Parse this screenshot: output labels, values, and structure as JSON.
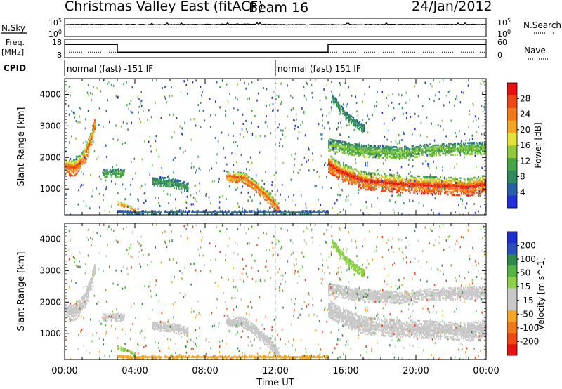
{
  "header": {
    "station": "Christmas Valley East (fitACF)",
    "beam": "Beam 16",
    "date": "24/Jan/2012"
  },
  "top_panels": {
    "nsky_label": "N.Sky",
    "nsky_ticks": [
      "10^5",
      "10^0"
    ],
    "nsearch_label": "N.Search",
    "nsearch_ticks": [
      "10^5",
      "10^0"
    ],
    "freq_label": "Freq.",
    "freq_unit": "[MHz]",
    "freq_ticks": [
      "18",
      "8"
    ],
    "nave_label": "Nave",
    "nave_ticks": [
      "60",
      "0"
    ],
    "cpid_label": "CPID",
    "cpid_segments": [
      {
        "label": "normal (fast) -151 IF",
        "start_hour": 0,
        "end_hour": 12
      },
      {
        "label": "normal (fast) 151 IF",
        "start_hour": 12,
        "end_hour": 24
      }
    ]
  },
  "colors": {
    "power_scale": [
      "#2130d8",
      "#2860a8",
      "#2f8a62",
      "#45a548",
      "#8fc83a",
      "#e2e23a",
      "#f5a623",
      "#f07a1a",
      "#ee4816",
      "#e81010"
    ],
    "velocity_scale": [
      "#1d2fcf",
      "#2c4fbf",
      "#2f8a4a",
      "#55b340",
      "#8cd04a",
      "#c8c8c8",
      "#c8c8c8",
      "#f5a623",
      "#f07a1a",
      "#ee4816",
      "#e81010"
    ]
  },
  "chart_data": [
    {
      "type": "line",
      "title": "N.Sky / N.Search",
      "x_range_hours": [
        0,
        24
      ],
      "y_scale": "log",
      "ylim": [
        1,
        100000
      ],
      "series": [
        {
          "name": "N.Sky",
          "style": "solid",
          "x": [
            0,
            2,
            4,
            6,
            8,
            10,
            12,
            14,
            16,
            18,
            20,
            22,
            24
          ],
          "values": [
            3000,
            3500,
            3200,
            3000,
            3400,
            4500,
            3000,
            2800,
            3000,
            3200,
            3500,
            3300,
            3400
          ]
        },
        {
          "name": "N.Search",
          "style": "dotted",
          "x": [
            0,
            4,
            8,
            12,
            16,
            20,
            24
          ],
          "values": [
            400,
            400,
            400,
            400,
            400,
            400,
            400
          ]
        }
      ]
    },
    {
      "type": "line",
      "title": "Freq. / Nave",
      "x_range_hours": [
        0,
        24
      ],
      "ylim_freq_mhz": [
        8,
        18
      ],
      "ylim_nave": [
        0,
        60
      ],
      "series": [
        {
          "name": "Freq.",
          "style": "solid",
          "x": [
            0,
            3.0,
            3.0,
            15.0,
            15.0,
            24
          ],
          "values": [
            15.2,
            15.2,
            11.0,
            11.0,
            15.2,
            15.2
          ]
        },
        {
          "name": "Nave",
          "style": "dotted",
          "x": [
            0,
            24
          ],
          "values": [
            18,
            18
          ]
        }
      ]
    },
    {
      "type": "heatmap",
      "variable": "Power",
      "ylabel": "Slant Range [km]",
      "colorbar_label": "Power [dB]",
      "colorbar_ticks": [
        "4",
        "8",
        "12",
        "16",
        "20",
        "24",
        "28"
      ],
      "zlim": [
        0,
        30
      ],
      "xlim_hours": [
        0,
        24
      ],
      "ylim_km": [
        180,
        4500
      ],
      "y_ticks": [
        "1000",
        "2000",
        "3000",
        "4000"
      ],
      "regions": [
        {
          "name": "morning band",
          "t": [
            0.0,
            0.5,
            1.0,
            1.5,
            1.7
          ],
          "r_center": [
            1700,
            1650,
            1900,
            2600,
            3200
          ],
          "width_km": 500,
          "peak_db": 26
        },
        {
          "name": "mid blob A",
          "t": [
            2.2,
            2.8,
            3.4
          ],
          "r_center": [
            1500,
            1500,
            1500
          ],
          "width_km": 250,
          "peak_db": 12
        },
        {
          "name": "mid blob B",
          "t": [
            5.0,
            6.0,
            7.0
          ],
          "r_center": [
            1250,
            1200,
            1050
          ],
          "width_km": 300,
          "peak_db": 10
        },
        {
          "name": "near echo 04",
          "t": [
            3.0,
            3.5,
            4.0
          ],
          "r_center": [
            550,
            450,
            320
          ],
          "width_km": 120,
          "peak_db": 24
        },
        {
          "name": "pre-noon band",
          "t": [
            9.2,
            10.2,
            11.0,
            11.6,
            12.2
          ],
          "r_center": [
            1400,
            1350,
            1000,
            700,
            350
          ],
          "width_km": 350,
          "peak_db": 25
        },
        {
          "name": "afternoon band",
          "t": [
            15.0,
            15.6,
            17.0,
            19.0,
            21.0,
            23.0,
            24.0
          ],
          "r_center": [
            1800,
            1550,
            1250,
            1150,
            1100,
            1050,
            1150
          ],
          "width_km": 550,
          "peak_db": 28
        },
        {
          "name": "upper layer",
          "t": [
            15.0,
            17.0,
            19.0,
            21.0,
            24.0
          ],
          "r_center": [
            2400,
            2200,
            2150,
            2250,
            2300
          ],
          "width_km": 400,
          "peak_db": 14
        },
        {
          "name": "high arc",
          "t": [
            15.2,
            16.0,
            17.0
          ],
          "r_center": [
            3900,
            3300,
            2900
          ],
          "width_km": 250,
          "peak_db": 10
        },
        {
          "name": "ground scatter floor",
          "t": [
            3.0,
            8.0,
            13.0,
            15.0
          ],
          "r_center": [
            240,
            240,
            240,
            240
          ],
          "width_km": 90,
          "peak_db": 6
        }
      ]
    },
    {
      "type": "heatmap",
      "variable": "Velocity",
      "ylabel": "Slant Range [km]",
      "colorbar_label": "Velocity [m s^-1]",
      "colorbar_ticks": [
        "200",
        "100",
        "50",
        "15",
        "-15",
        "-50",
        "-100",
        "-200"
      ],
      "zlim": [
        -250,
        250
      ],
      "xlim_hours": [
        0,
        24
      ],
      "ylim_km": [
        180,
        4500
      ],
      "y_ticks": [
        "1000",
        "2000",
        "3000",
        "4000"
      ],
      "x_ticks": [
        "00:00",
        "04:00",
        "08:00",
        "12:00",
        "16:00",
        "20:00",
        "00:00"
      ],
      "xlabel": "Time UT",
      "regions": [
        {
          "name": "morning band",
          "t": [
            0.0,
            0.5,
            1.0,
            1.5,
            1.7
          ],
          "r_center": [
            1700,
            1650,
            1900,
            2600,
            3200
          ],
          "width_km": 500,
          "vel": 0
        },
        {
          "name": "mid blob A",
          "t": [
            2.2,
            2.8,
            3.4
          ],
          "r_center": [
            1500,
            1500,
            1500
          ],
          "width_km": 250,
          "vel": 5
        },
        {
          "name": "mid blob B",
          "t": [
            5.0,
            6.0,
            7.0
          ],
          "r_center": [
            1250,
            1200,
            1050
          ],
          "width_km": 300,
          "vel": -5
        },
        {
          "name": "near echo 04",
          "t": [
            3.0,
            3.5,
            4.0
          ],
          "r_center": [
            550,
            450,
            320
          ],
          "width_km": 120,
          "vel": 40
        },
        {
          "name": "pre-noon band",
          "t": [
            9.2,
            10.2,
            11.0,
            11.6,
            12.2
          ],
          "r_center": [
            1400,
            1350,
            1000,
            700,
            350
          ],
          "width_km": 350,
          "vel": 0
        },
        {
          "name": "afternoon band",
          "t": [
            15.0,
            15.6,
            17.0,
            19.0,
            21.0,
            23.0,
            24.0
          ],
          "r_center": [
            1800,
            1550,
            1250,
            1150,
            1100,
            1050,
            1150
          ],
          "width_km": 550,
          "vel": 0
        },
        {
          "name": "upper layer",
          "t": [
            15.0,
            17.0,
            19.0,
            21.0,
            24.0
          ],
          "r_center": [
            2400,
            2200,
            2150,
            2250,
            2300
          ],
          "width_km": 400,
          "vel": 0
        },
        {
          "name": "high arc",
          "t": [
            15.2,
            16.0,
            17.0
          ],
          "r_center": [
            3900,
            3300,
            2900
          ],
          "width_km": 250,
          "vel": 30
        },
        {
          "name": "ground scatter floor",
          "t": [
            3.0,
            8.0,
            13.0,
            15.0
          ],
          "r_center": [
            240,
            240,
            240,
            240
          ],
          "width_km": 90,
          "vel": -60
        }
      ]
    }
  ]
}
